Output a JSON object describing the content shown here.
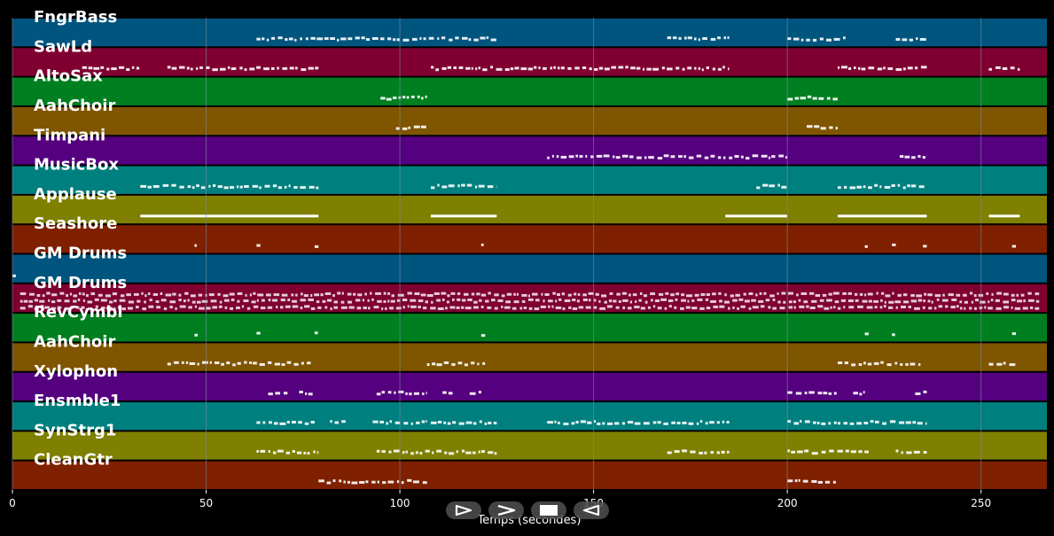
{
  "timeline": {
    "x_min": 0,
    "x_max": 267,
    "ticks": [
      {
        "value": 0,
        "label": "0"
      },
      {
        "value": 50,
        "label": "50"
      },
      {
        "value": 100,
        "label": "100"
      },
      {
        "value": 150,
        "label": "150"
      },
      {
        "value": 200,
        "label": "200"
      },
      {
        "value": 250,
        "label": "250"
      }
    ],
    "xlabel": "Temps (secondes)",
    "grid": true
  },
  "colors": {
    "background": "#000000",
    "note": "#ffffff",
    "grid": "#7c8a9c"
  },
  "tracks": [
    {
      "name": "FngrBass",
      "color": "#00557f",
      "segments": [
        [
          63,
          125
        ],
        [
          169,
          185
        ],
        [
          200,
          215
        ],
        [
          228,
          236
        ]
      ],
      "thick": false,
      "dense": false
    },
    {
      "name": "SawLd",
      "color": "#7f0030",
      "segments": [
        [
          18,
          33
        ],
        [
          40,
          79
        ],
        [
          108,
          185
        ],
        [
          213,
          236
        ],
        [
          252,
          260
        ]
      ],
      "thick": false,
      "dense": false
    },
    {
      "name": "AltoSax",
      "color": "#007f20",
      "segments": [
        [
          95,
          107
        ],
        [
          200,
          213
        ]
      ],
      "thick": false,
      "dense": false
    },
    {
      "name": "AahChoir",
      "color": "#7f5500",
      "segments": [
        [
          99,
          107
        ],
        [
          205,
          213
        ]
      ],
      "thick": false,
      "dense": false
    },
    {
      "name": "Timpani",
      "color": "#55007f",
      "segments": [
        [
          138,
          200
        ],
        [
          229,
          236
        ]
      ],
      "thick": false,
      "dense": false
    },
    {
      "name": "MusicBox",
      "color": "#007f7f",
      "segments": [
        [
          33,
          79
        ],
        [
          108,
          125
        ],
        [
          192,
          200
        ],
        [
          213,
          236
        ]
      ],
      "thick": false,
      "dense": false
    },
    {
      "name": "Applause",
      "color": "#7f7f00",
      "segments": [
        [
          33,
          79
        ],
        [
          108,
          125
        ],
        [
          184,
          200
        ],
        [
          213,
          236
        ],
        [
          252,
          260
        ]
      ],
      "thick": true,
      "dense": false
    },
    {
      "name": "Seashore",
      "color": "#7f2000",
      "segments": [
        [
          47,
          48
        ],
        [
          63,
          64
        ],
        [
          78,
          79
        ],
        [
          121,
          122
        ],
        [
          220,
          221
        ],
        [
          227,
          228
        ],
        [
          235,
          236
        ],
        [
          258,
          259
        ]
      ],
      "thick": false,
      "dense": false
    },
    {
      "name": "GM Drums",
      "color": "#00557f",
      "segments": [
        [
          0,
          1
        ]
      ],
      "thick": false,
      "dense": false
    },
    {
      "name": "GM Drums",
      "color": "#7f0030",
      "segments": [
        [
          2,
          265
        ]
      ],
      "thick": false,
      "dense": true
    },
    {
      "name": "RevCymbl",
      "color": "#007f20",
      "segments": [
        [
          47,
          48
        ],
        [
          63,
          64
        ],
        [
          78,
          79
        ],
        [
          121,
          122
        ],
        [
          220,
          221
        ],
        [
          227,
          228
        ],
        [
          258,
          259
        ]
      ],
      "thick": false,
      "dense": false
    },
    {
      "name": "AahChoir",
      "color": "#7f5500",
      "segments": [
        [
          40,
          77
        ],
        [
          107,
          122
        ],
        [
          213,
          235
        ],
        [
          252,
          259
        ]
      ],
      "thick": false,
      "dense": false
    },
    {
      "name": "Xylophon",
      "color": "#55007f",
      "segments": [
        [
          66,
          71
        ],
        [
          74,
          78
        ],
        [
          94,
          107
        ],
        [
          111,
          114
        ],
        [
          118,
          121
        ],
        [
          200,
          213
        ],
        [
          217,
          220
        ],
        [
          233,
          236
        ]
      ],
      "thick": false,
      "dense": false
    },
    {
      "name": "Ensmble1",
      "color": "#007f7f",
      "segments": [
        [
          63,
          78
        ],
        [
          82,
          86
        ],
        [
          93,
          107
        ],
        [
          108,
          125
        ],
        [
          138,
          185
        ],
        [
          200,
          236
        ]
      ],
      "thick": false,
      "dense": false
    },
    {
      "name": "SynStrg1",
      "color": "#7f7f00",
      "segments": [
        [
          63,
          79
        ],
        [
          94,
          125
        ],
        [
          169,
          185
        ],
        [
          200,
          221
        ],
        [
          228,
          236
        ]
      ],
      "thick": false,
      "dense": false
    },
    {
      "name": "CleanGtr",
      "color": "#7f2000",
      "segments": [
        [
          79,
          107
        ],
        [
          200,
          213
        ]
      ],
      "thick": false,
      "dense": false
    }
  ],
  "controls": [
    {
      "name": "play-button",
      "icon": "play-icon"
    },
    {
      "name": "forward-button",
      "icon": "chevron-right-icon"
    },
    {
      "name": "stop-button",
      "icon": "stop-icon"
    },
    {
      "name": "rewind-button",
      "icon": "reverse-play-icon"
    }
  ]
}
